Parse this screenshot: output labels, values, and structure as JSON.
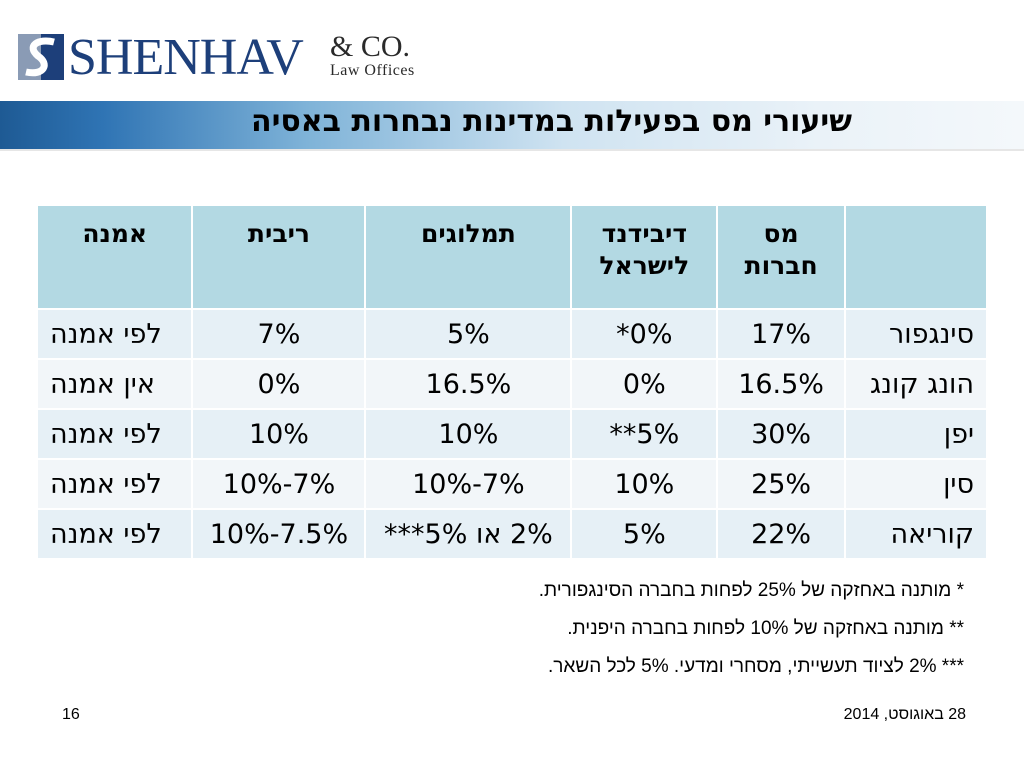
{
  "logo": {
    "name": "SHENHAV",
    "suffix": "& CO.",
    "subtitle": "Law Offices"
  },
  "title": "שיעורי מס בפעילות במדינות נבחרות באסיה",
  "table": {
    "headers": [
      "",
      "מס חברות",
      "דיבידנד לישראל",
      "תמלוגים",
      "ריבית",
      "אמנה"
    ],
    "rows": [
      [
        "סינגפור",
        "17%",
        "0%*",
        "5%",
        "7%",
        "לפי אמנה"
      ],
      [
        "הונג קונג",
        "16.5%",
        "0%",
        "16.5%",
        "0%",
        "אין אמנה"
      ],
      [
        "יפן",
        "30%",
        "5%**",
        "10%",
        "10%",
        "לפי אמנה"
      ],
      [
        "סין",
        "25%",
        "10%",
        "7%-10%",
        "7%-10%",
        "לפי אמנה"
      ],
      [
        "קוריאה",
        "22%",
        "5%",
        "2% או 5%***",
        "7.5%-10%",
        "לפי אמנה"
      ]
    ]
  },
  "notes": [
    "*   מותנה באחזקה של 25% לפחות בחברה הסינגפורית.",
    "**  מותנה באחזקה של 10% לפחות בחברה היפנית.",
    "*** 2% לציוד תעשייתי, מסחרי ומדעי. 5% לכל השאר."
  ],
  "footer": {
    "date": "28 באוגוסט, 2014",
    "page": "16"
  },
  "colors": {
    "header_bg": "#b3d9e3",
    "row_odd": "#e6f0f6",
    "row_even": "#f2f6f9",
    "brand": "#1d3f7a"
  }
}
